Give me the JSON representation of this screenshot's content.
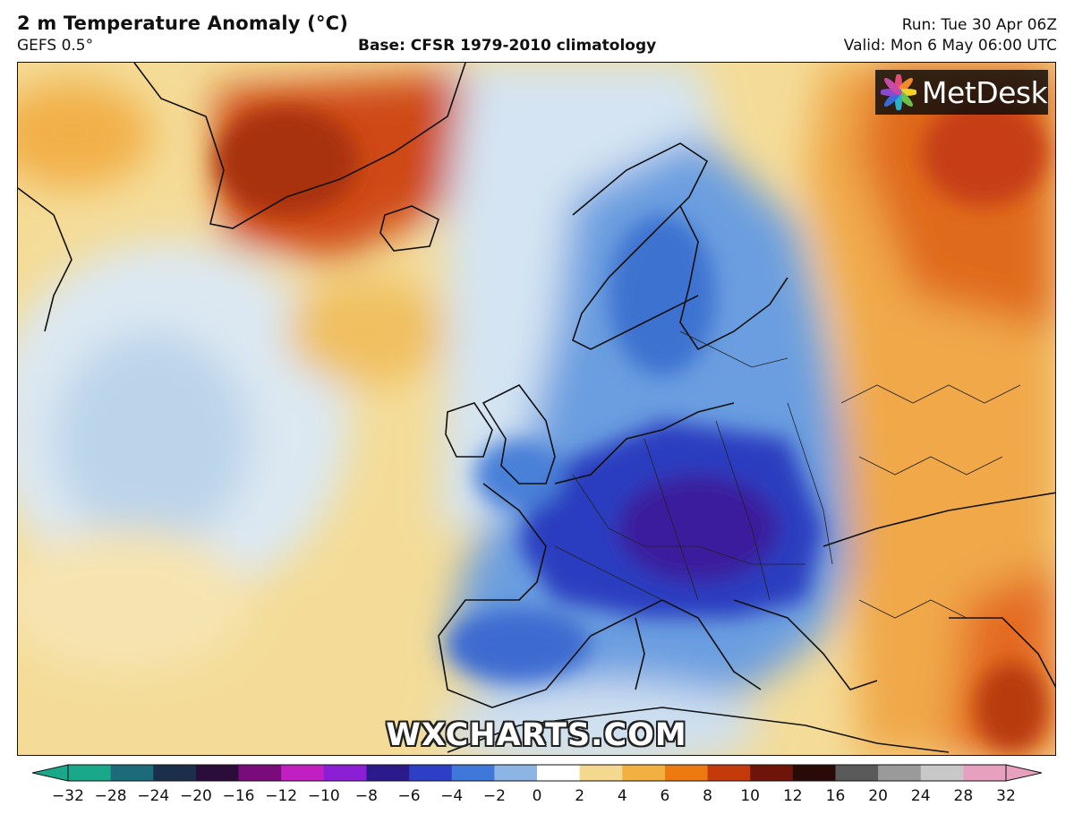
{
  "header": {
    "title": "2 m Temperature Anomaly (°C)",
    "model": "GEFS 0.5°",
    "base": "Base: CFSR 1979-2010 climatology",
    "run": "Run: Tue 30 Apr 06Z",
    "valid": "Valid: Mon 6 May 06:00 UTC"
  },
  "branding": {
    "logo_text": "MetDesk",
    "watermark": "WXCHARTS.COM"
  },
  "colorbar": {
    "ticks": [
      "−32",
      "−28",
      "−24",
      "−20",
      "−16",
      "−12",
      "−10",
      "−8",
      "−6",
      "−4",
      "−2",
      "0",
      "2",
      "4",
      "6",
      "8",
      "10",
      "12",
      "16",
      "20",
      "24",
      "28",
      "32"
    ],
    "colors": [
      "#1aa88a",
      "#1b6b7a",
      "#1c2f4a",
      "#2a0d3a",
      "#7a0b7a",
      "#c21fc2",
      "#8c1fd6",
      "#2a1a8c",
      "#2d3fc4",
      "#3f78d8",
      "#8cb4e4",
      "#ffffff",
      "#f4d890",
      "#f2b040",
      "#ec7a10",
      "#c43a0a",
      "#6e1408",
      "#2a0a06",
      "#5a5a5a",
      "#9a9a9a",
      "#c8c8c8",
      "#e8a0c0"
    ]
  }
}
